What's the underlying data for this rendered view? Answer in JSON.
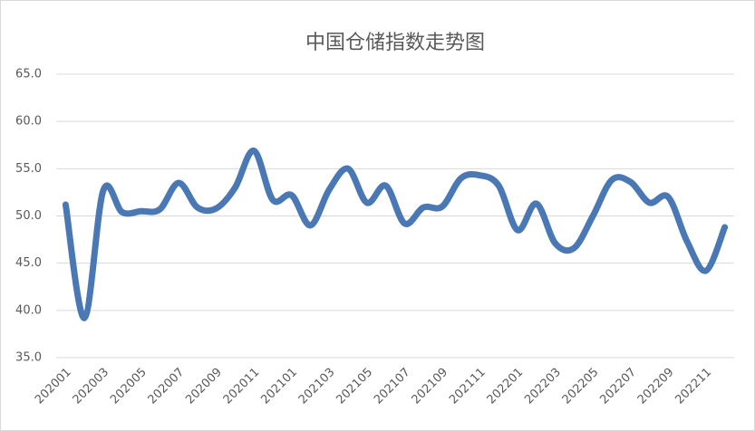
{
  "chart_data": {
    "type": "line",
    "title": "中国仓储指数走势图",
    "categories": [
      "202001",
      null,
      "202003",
      null,
      "202005",
      null,
      "202007",
      null,
      "202009",
      null,
      "202011",
      null,
      "202101",
      null,
      "202103",
      null,
      "202105",
      null,
      "202107",
      null,
      "202109",
      null,
      "202111",
      null,
      "202201",
      null,
      "202203",
      null,
      "202205",
      null,
      "202207",
      null,
      "202209",
      null,
      "202211",
      null
    ],
    "series": [
      {
        "name": "中国仓储指数",
        "color": "#4a78b5",
        "values": [
          51.2,
          39.2,
          52.7,
          50.4,
          50.5,
          50.7,
          53.5,
          50.9,
          50.8,
          53.0,
          56.9,
          51.7,
          52.2,
          49.0,
          52.8,
          55.0,
          51.4,
          53.2,
          49.2,
          50.9,
          51.0,
          54.0,
          54.3,
          53.2,
          48.5,
          51.3,
          47.1,
          46.6,
          50.0,
          53.8,
          53.6,
          51.4,
          52.0,
          47.3,
          44.2,
          48.8
        ]
      }
    ],
    "ylim": [
      35,
      65
    ],
    "yticks": [
      {
        "value": 35,
        "label": "35.0"
      },
      {
        "value": 40,
        "label": "40.0"
      },
      {
        "value": 45,
        "label": "45.0"
      },
      {
        "value": 50,
        "label": "50.0"
      },
      {
        "value": 55,
        "label": "55.0"
      },
      {
        "value": 60,
        "label": "60.0"
      },
      {
        "value": 65,
        "label": "65.0"
      }
    ],
    "grid": true
  }
}
